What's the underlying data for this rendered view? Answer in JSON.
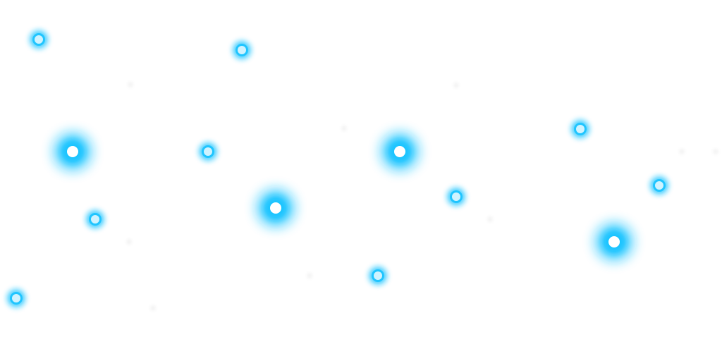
{
  "scene": {
    "background_color": "#ffffff",
    "glow_color": "#19c3ff",
    "core_color": "#ffffff",
    "small_core_color": "#cff3ff",
    "faint_dot_color": "#f2f2f2",
    "dot_kinds": [
      "large-glow",
      "small-glow",
      "faint"
    ],
    "large_glow_count": 4,
    "small_glow_count": 9,
    "faint_dot_count": 9
  }
}
